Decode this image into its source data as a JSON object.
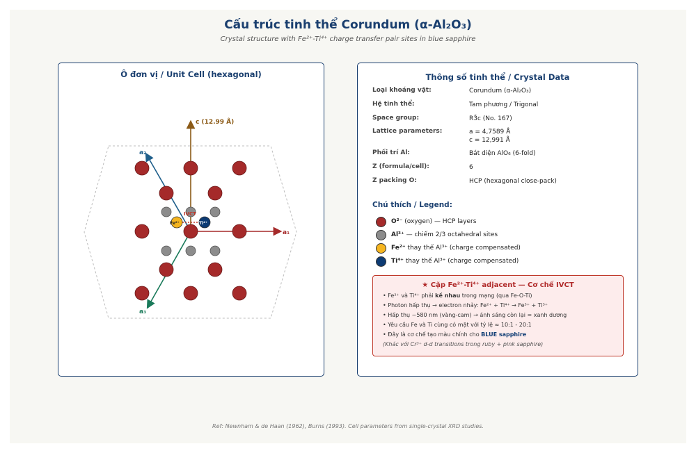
{
  "header": {
    "title": "Cấu trúc tinh thể Corundum (α-Al₂O₃)",
    "subtitle": "Crystal structure with Fe²⁺-Ti⁴⁺ charge transfer pair sites in blue sapphire"
  },
  "unit_cell": {
    "title": "Ô đơn vị / Unit Cell (hexagonal)",
    "c_label": "c (12.99 Å)",
    "a1_label": "a₁",
    "a2_label": "a₂",
    "a3_label": "a₃",
    "ivct_label": "IVCT",
    "fe_label": "Fe²⁺",
    "ti_label": "Ti⁴⁺",
    "colors": {
      "oxygen": "#a52a2a",
      "aluminum": "#8c8c8c",
      "fe": "#f5b520",
      "ti": "#0d3b73",
      "c_axis": "#8b5a16",
      "a1_axis": "#a52a2a",
      "a2_axis": "#1f5f8b",
      "a3_axis": "#1a7a5a"
    }
  },
  "crystal_data": {
    "title": "Thông số tinh thể / Crystal Data",
    "rows": [
      {
        "key": "Loại khoáng vật:",
        "value": "Corundum (α-Al₂O₃)"
      },
      {
        "key": "Hệ tinh thể:",
        "value": "Tam phương / Trigonal"
      },
      {
        "key": "Space group:",
        "value": "R3̄c (No. 167)"
      },
      {
        "key": "Lattice parameters:",
        "value": "a = 4,7589 Å",
        "value2": "c = 12,991 Å"
      },
      {
        "key": "Phối trí Al:",
        "value": "Bát diện AlO₆ (6-fold)"
      },
      {
        "key": "Z (formula/cell):",
        "value": "6"
      },
      {
        "key": "Z packing O:",
        "value": "HCP (hexagonal close-pack)"
      }
    ]
  },
  "legend": {
    "title": "Chú thích / Legend:",
    "items": [
      {
        "symbol": "O²⁻",
        "text": "(oxygen) — HCP layers",
        "color": "#a52a2a"
      },
      {
        "symbol": "Al³⁺",
        "text": "— chiếm 2/3 octahedral sites",
        "color": "#8c8c8c"
      },
      {
        "symbol": "Fe²⁺",
        "text": "thay thế Al³⁺ (charge compensated)",
        "color": "#f5b520"
      },
      {
        "symbol": "Ti⁴⁺",
        "text": "thay thế Al³⁺ (charge compensated)",
        "color": "#0d3b73"
      }
    ]
  },
  "ivct_box": {
    "title": "★ Cặp Fe²⁺-Ti⁴⁺ adjacent — Cơ chế IVCT",
    "lines": [
      {
        "pre": "• Fe²⁺ và Ti⁴⁺ phải ",
        "bold": "kề nhau",
        "post": " trong mạng (qua Fe-O-Ti)"
      },
      {
        "pre": "• Photon hấp thụ → electron nhảy: Fe²⁺ + Ti⁴⁺ → Fe³⁺ + Ti³⁺",
        "bold": "",
        "post": ""
      },
      {
        "pre": "• Hấp thụ ~580 nm (vàng-cam) → ánh sáng còn lại = xanh dương",
        "bold": "",
        "post": ""
      },
      {
        "pre": "• Yêu cầu Fe và Ti cùng có mặt với tỷ lệ ≈ 10:1 - 20:1",
        "bold": "",
        "post": ""
      },
      {
        "pre": "• Đây là cơ chế tạo màu chính cho ",
        "bold": "BLUE sapphire",
        "post": ""
      }
    ],
    "note": "(Khác với Cr³⁺ d-d transitions trong ruby + pink sapphire)"
  },
  "footer": "Ref: Newnham & de Haan (1962), Burns (1993). Cell parameters from single-crystal XRD studies."
}
